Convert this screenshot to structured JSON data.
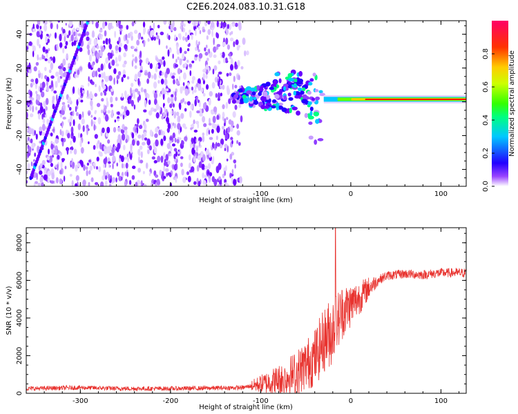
{
  "title": "C2E6.2024.083.10.31.G18",
  "chart_data": [
    {
      "type": "heatmap",
      "name": "spectrogram",
      "xlabel": "Height of straight line (km)",
      "ylabel": "Frequency (Hz)",
      "xlim": [
        -360,
        128
      ],
      "ylim": [
        -50,
        48
      ],
      "xticks": [
        -300,
        -200,
        -100,
        0,
        100
      ],
      "xtick_labels": [
        "-300",
        "-200",
        "-100",
        "0",
        "100"
      ],
      "yticks": [
        -40,
        -20,
        0,
        20,
        40
      ],
      "ytick_labels": [
        "-40",
        "-20",
        "0",
        "20",
        "40"
      ],
      "colorbar": {
        "label": "Normalized spectral amplitude",
        "range": [
          0,
          1
        ],
        "ticks": [
          0.0,
          0.2,
          0.4,
          0.6,
          0.8
        ],
        "tick_labels": [
          "0.0",
          "0.2",
          "0.4",
          "0.6",
          "0.8"
        ],
        "colors": [
          "#ffffff",
          "#8800ff",
          "#0000ff",
          "#00ccff",
          "#00ff66",
          "#66ff00",
          "#ffff00",
          "#ff8800",
          "#ff0000",
          "#ff0066"
        ]
      },
      "features": {
        "noise_region_x": [
          -360,
          -120
        ],
        "diagonal_line": {
          "x": [
            -355,
            -290
          ],
          "y": [
            -45,
            50
          ]
        },
        "carrier_line": {
          "x": [
            -30,
            128
          ],
          "y": 1.5
        },
        "transition_cluster": {
          "x": [
            -130,
            -30
          ],
          "y": [
            -25,
            18
          ]
        }
      }
    },
    {
      "type": "line",
      "name": "snr",
      "xlabel": "Height of straight line (km)",
      "ylabel": "SNR (10 * v/v)",
      "xlim": [
        -360,
        128
      ],
      "ylim": [
        0,
        8800
      ],
      "xticks": [
        -300,
        -200,
        -100,
        0,
        100
      ],
      "xtick_labels": [
        "-300",
        "-200",
        "-100",
        "0",
        "100"
      ],
      "yticks": [
        0,
        2000,
        4000,
        6000,
        8000
      ],
      "ytick_labels": [
        "0",
        "2000",
        "4000",
        "6000",
        "8000"
      ],
      "series": [
        {
          "name": "SNR",
          "color": "#e8322e",
          "x": [
            -360,
            -300,
            -250,
            -200,
            -150,
            -120,
            -100,
            -80,
            -60,
            -40,
            -30,
            -20,
            -15,
            -10,
            0,
            10,
            20,
            30,
            40,
            60,
            80,
            100,
            120,
            128
          ],
          "y": [
            250,
            300,
            250,
            250,
            280,
            300,
            500,
            700,
            1100,
            1900,
            2800,
            3400,
            3800,
            4300,
            4700,
            5100,
            5600,
            6000,
            6250,
            6350,
            6300,
            6400,
            6400,
            6400
          ],
          "spike": {
            "x": -17,
            "y": 8800
          }
        }
      ]
    }
  ]
}
